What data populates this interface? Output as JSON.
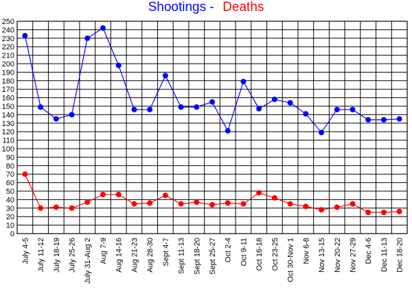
{
  "title": {
    "shootings": "Shootings -",
    "deaths": "Deaths",
    "shootings_color": "#0000ff",
    "deaths_color": "#ff0000"
  },
  "chart_data": {
    "type": "line",
    "categories": [
      "July 4-5",
      "July 11-12",
      "July 18-19",
      "July 25-26",
      "July 31-Aug 2",
      "Aug 7-9",
      "Aug 14-16",
      "Aug 21-23",
      "Aug 28-30",
      "Sept 4-7",
      "Sept 11-13",
      "Sept 18-20",
      "Sept 25-27",
      "Oct 2-4",
      "Oct 9-11",
      "Oct 16-18",
      "Oct 23-25",
      "Oct 30-Nov 1",
      "Nov 6-8",
      "Nov 13-15",
      "Nov 20-22",
      "Nov 27-29",
      "Dec 4-6",
      "Dec 11-13",
      "Dec 18-20"
    ],
    "series": [
      {
        "key": "shootings",
        "color": "#0000ff",
        "values": [
          233,
          149,
          135,
          140,
          230,
          242,
          198,
          146,
          146,
          186,
          149,
          149,
          155,
          121,
          179,
          147,
          158,
          154,
          141,
          119,
          146,
          146,
          134,
          134,
          135
        ]
      },
      {
        "key": "deaths",
        "color": "#ff0000",
        "values": [
          70,
          30,
          31,
          30,
          37,
          46,
          46,
          35,
          36,
          45,
          35,
          37,
          34,
          36,
          35,
          48,
          42,
          35,
          32,
          28,
          31,
          35,
          25,
          25,
          26
        ]
      }
    ],
    "ylim": [
      0,
      250
    ],
    "y_ticks": [
      0,
      10,
      20,
      30,
      40,
      50,
      60,
      70,
      80,
      90,
      100,
      110,
      120,
      130,
      140,
      150,
      160,
      170,
      180,
      190,
      200,
      210,
      220,
      230,
      240,
      250
    ],
    "grid": true,
    "xlabel": "",
    "ylabel": ""
  }
}
